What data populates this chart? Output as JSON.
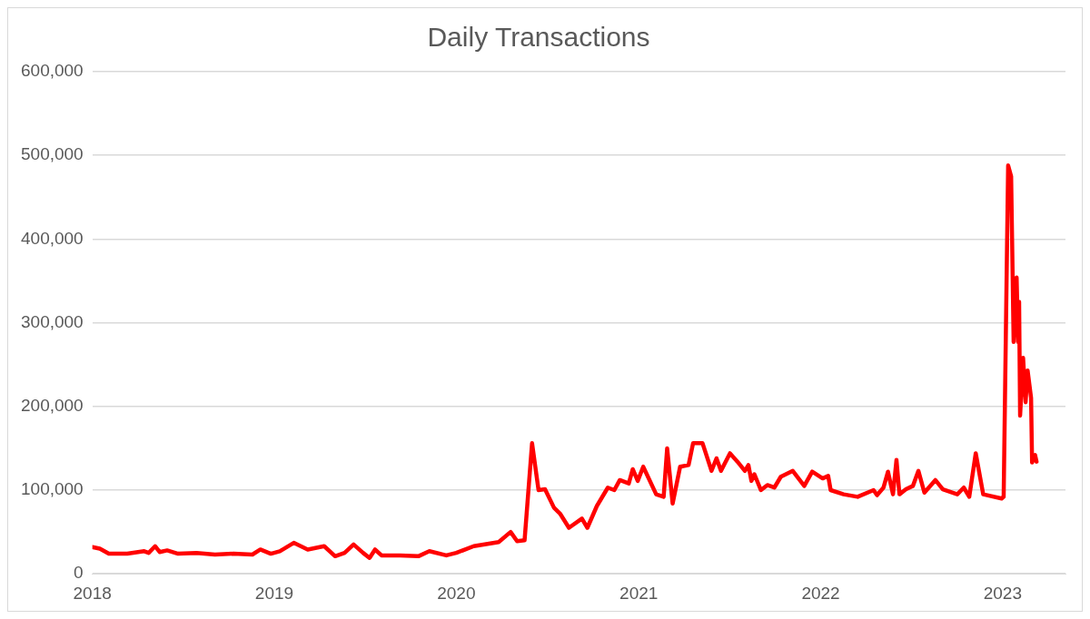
{
  "chart_data": {
    "type": "line",
    "title": "Daily Transactions",
    "x": [
      "2018-01-01",
      "2018-01-16",
      "2018-02-03",
      "2018-03-12",
      "2018-04-15",
      "2018-04-24",
      "2018-05-07",
      "2018-05-16",
      "2018-05-31",
      "2018-06-22",
      "2018-07-29",
      "2018-09-04",
      "2018-10-11",
      "2018-11-18",
      "2018-12-04",
      "2018-12-25",
      "2019-01-12",
      "2019-02-09",
      "2019-03-09",
      "2019-04-11",
      "2019-05-03",
      "2019-05-22",
      "2019-06-09",
      "2019-06-28",
      "2019-07-11",
      "2019-07-22",
      "2019-08-04",
      "2019-09-10",
      "2019-10-17",
      "2019-11-08",
      "2019-12-12",
      "2020-01-01",
      "2020-02-05",
      "2020-03-26",
      "2020-04-19",
      "2020-05-02",
      "2020-05-17",
      "2020-06-01",
      "2020-06-14",
      "2020-06-27",
      "2020-07-15",
      "2020-07-27",
      "2020-08-14",
      "2020-09-09",
      "2020-09-20",
      "2020-10-09",
      "2020-10-31",
      "2020-11-13",
      "2020-11-24",
      "2020-12-12",
      "2020-12-20",
      "2020-12-30",
      "2021-01-10",
      "2021-02-05",
      "2021-02-20",
      "2021-02-27",
      "2021-03-10",
      "2021-03-25",
      "2021-04-11",
      "2021-04-20",
      "2021-05-09",
      "2021-05-27",
      "2021-06-06",
      "2021-06-15",
      "2021-07-03",
      "2021-07-18",
      "2021-08-02",
      "2021-08-09",
      "2021-08-15",
      "2021-08-21",
      "2021-09-03",
      "2021-09-16",
      "2021-09-30",
      "2021-10-13",
      "2021-11-06",
      "2021-11-29",
      "2021-12-15",
      "2022-01-05",
      "2022-01-16",
      "2022-01-21",
      "2022-02-16",
      "2022-03-16",
      "2022-04-17",
      "2022-04-24",
      "2022-05-07",
      "2022-05-16",
      "2022-05-26",
      "2022-06-02",
      "2022-06-08",
      "2022-06-21",
      "2022-07-05",
      "2022-07-16",
      "2022-07-28",
      "2022-08-19",
      "2022-09-03",
      "2022-10-02",
      "2022-10-15",
      "2022-10-26",
      "2022-11-08",
      "2022-11-23",
      "2022-12-30",
      "2023-01-03",
      "2023-01-10",
      "2023-01-12",
      "2023-01-18",
      "2023-01-23",
      "2023-01-29",
      "2023-02-01",
      "2023-02-03",
      "2023-02-05",
      "2023-02-11",
      "2023-02-16",
      "2023-02-20",
      "2023-02-27",
      "2023-03-01",
      "2023-03-07",
      "2023-03-10"
    ],
    "series": [
      {
        "color": "#ff0000",
        "values": [
          32000,
          30000,
          24000,
          24000,
          27000,
          25000,
          33000,
          26000,
          28000,
          24000,
          25000,
          23000,
          24000,
          23000,
          29000,
          24000,
          27000,
          37000,
          29000,
          33000,
          21000,
          25000,
          35000,
          25000,
          19000,
          29000,
          22000,
          22000,
          21000,
          27000,
          22000,
          25000,
          33000,
          38000,
          50000,
          39000,
          40000,
          156000,
          100000,
          101000,
          79000,
          72000,
          55000,
          66000,
          55000,
          81000,
          103000,
          100000,
          112000,
          108000,
          125000,
          111000,
          128000,
          95000,
          92000,
          150000,
          84000,
          128000,
          130000,
          156000,
          156000,
          123000,
          138000,
          123000,
          144000,
          134000,
          123000,
          130000,
          111000,
          119000,
          100000,
          106000,
          103000,
          116000,
          123000,
          105000,
          122000,
          114000,
          117000,
          100000,
          95000,
          92000,
          100000,
          94000,
          103000,
          122000,
          95000,
          136000,
          95000,
          101000,
          105000,
          123000,
          97000,
          112000,
          101000,
          95000,
          103000,
          92000,
          144000,
          95000,
          90000,
          92000,
          401000,
          488000,
          475000,
          277000,
          354000,
          277000,
          325000,
          189000,
          258000,
          205000,
          243000,
          210000,
          133000,
          142000,
          134000
        ]
      }
    ],
    "xlim": [
      "2018-01-01",
      "2023-05-07"
    ],
    "xticks": [
      "2018",
      "2019",
      "2020",
      "2021",
      "2022",
      "2023"
    ],
    "ylim": [
      0,
      600000
    ],
    "yticks": [
      0,
      {
        "value": 100000,
        "label": "100,000"
      },
      {
        "value": 200000,
        "label": "200,000"
      },
      {
        "value": 300000,
        "label": "300,000"
      },
      {
        "value": 400000,
        "label": "400,000"
      },
      {
        "value": 500000,
        "label": "500,000"
      },
      {
        "value": 600000,
        "label": "600,000"
      }
    ],
    "grid": "y",
    "legend": false,
    "marker": "none",
    "line_style": "solid"
  }
}
